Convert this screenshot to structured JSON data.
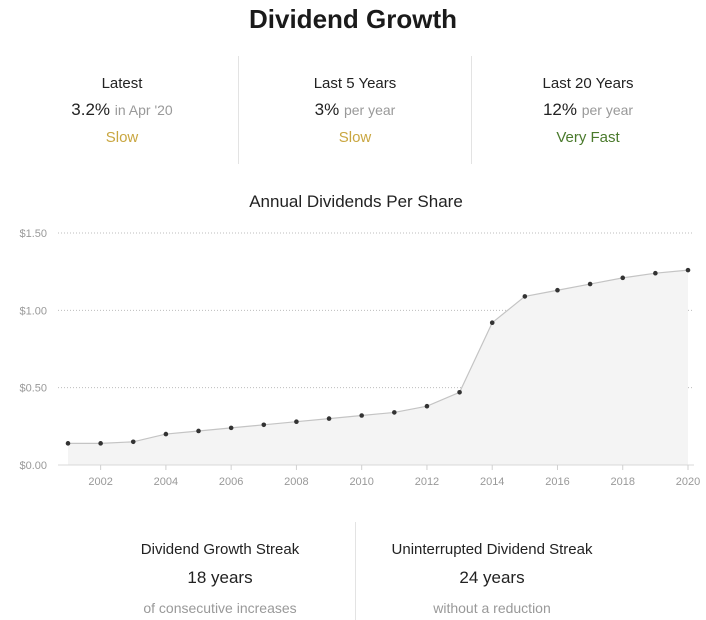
{
  "title": "Dividend Growth",
  "stats": [
    {
      "label": "Latest",
      "value": "3.2%",
      "sub": "in Apr '20",
      "rating": "Slow",
      "rating_color": "#c9a640"
    },
    {
      "label": "Last 5 Years",
      "value": "3%",
      "sub": "per year",
      "rating": "Slow",
      "rating_color": "#c9a640"
    },
    {
      "label": "Last 20 Years",
      "value": "12%",
      "sub": "per year",
      "rating": "Very Fast",
      "rating_color": "#4a7a2c"
    }
  ],
  "chart_data": {
    "type": "area",
    "title": "Annual Dividends Per Share",
    "x": [
      2001,
      2002,
      2003,
      2004,
      2005,
      2006,
      2007,
      2008,
      2009,
      2010,
      2011,
      2012,
      2013,
      2014,
      2015,
      2016,
      2017,
      2018,
      2019,
      2020
    ],
    "values": [
      0.14,
      0.14,
      0.15,
      0.2,
      0.22,
      0.24,
      0.26,
      0.28,
      0.3,
      0.32,
      0.34,
      0.38,
      0.47,
      0.92,
      1.09,
      1.13,
      1.17,
      1.21,
      1.24,
      1.26
    ],
    "y_ticks": [
      0,
      0.5,
      1.0,
      1.5
    ],
    "y_tick_labels": [
      "$0.00",
      "$0.50",
      "$1.00",
      "$1.50"
    ],
    "x_ticks": [
      2002,
      2004,
      2006,
      2008,
      2010,
      2012,
      2014,
      2016,
      2018,
      2020
    ],
    "ylim": [
      0,
      1.5
    ],
    "xlim": [
      2001,
      2020
    ],
    "grid": true,
    "xlabel": "",
    "ylabel": "",
    "line_color": "#c4c4c4",
    "fill_color": "#f4f4f4",
    "marker_color": "#333333"
  },
  "streaks": [
    {
      "label": "Dividend Growth Streak",
      "value": "18 years",
      "sub": "of consecutive increases"
    },
    {
      "label": "Uninterrupted Dividend Streak",
      "value": "24 years",
      "sub": "without a reduction"
    }
  ]
}
